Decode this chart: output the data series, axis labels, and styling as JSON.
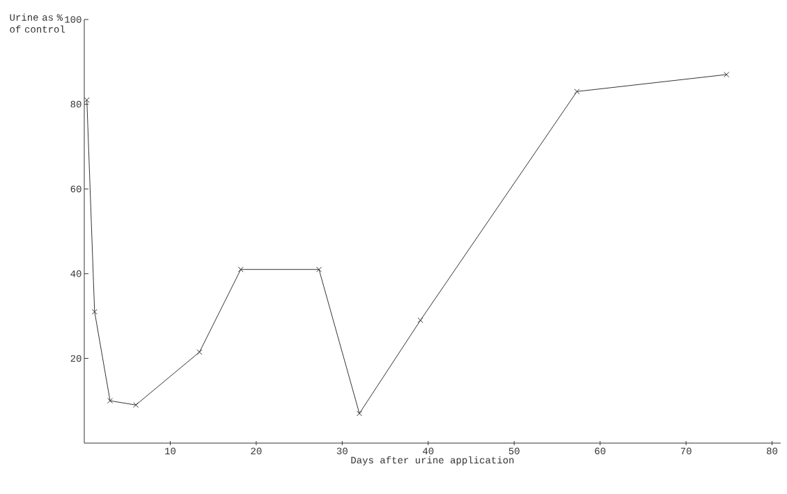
{
  "chart_data": {
    "type": "line",
    "xlabel": "Days after urine application",
    "ylabel": "Urine as % of control",
    "x": [
      0.3,
      1.2,
      3,
      6,
      13.4,
      18.2,
      27.3,
      32,
      39.1,
      57.3,
      74.7
    ],
    "values": [
      81,
      31,
      10,
      9,
      21.5,
      41,
      41,
      7,
      29,
      83,
      87
    ],
    "color": "#333333",
    "marker": "cross",
    "line_style": "solid",
    "grid": false,
    "xlim": [
      0,
      81
    ],
    "ylim": [
      0,
      100
    ],
    "xticks": [
      10,
      20,
      30,
      40,
      50,
      60,
      70,
      80
    ],
    "yticks": [
      20,
      40,
      60,
      80,
      100
    ]
  }
}
